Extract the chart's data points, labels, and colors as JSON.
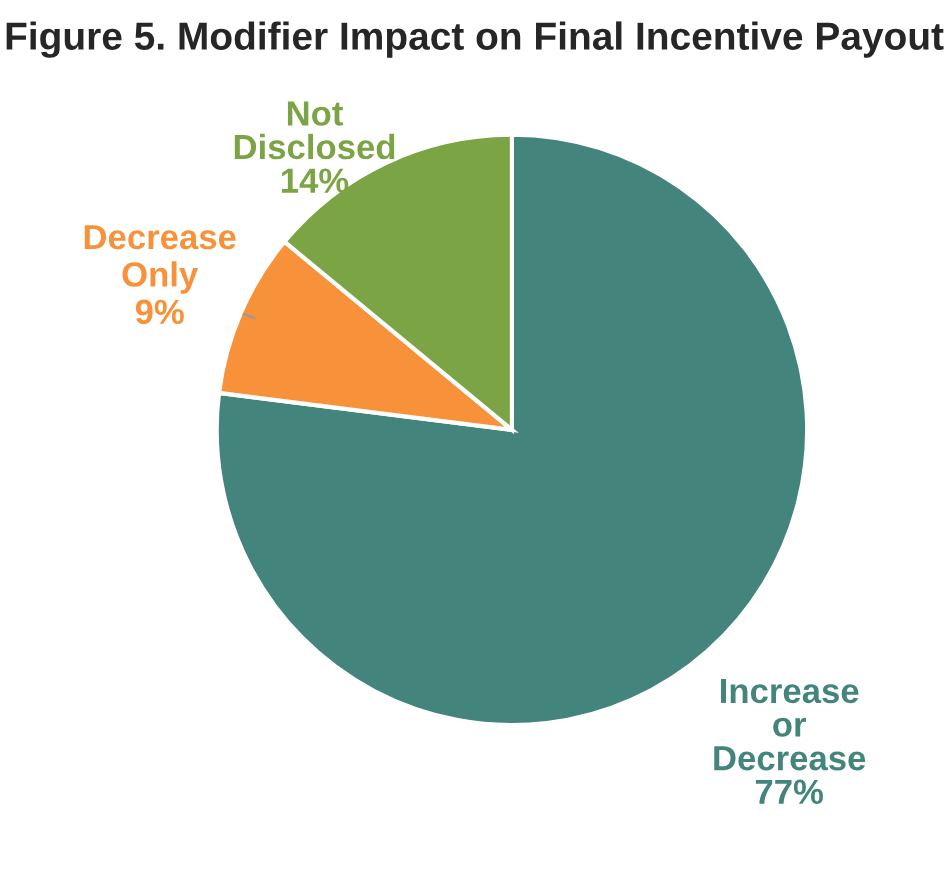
{
  "chart_data": {
    "type": "pie",
    "title": "Figure 5. Modifier Impact on Final Incentive Payout",
    "categories": [
      "Increase or Decrease",
      "Decrease Only",
      "Not Disclosed"
    ],
    "values": [
      77,
      9,
      14
    ],
    "value_labels": [
      "77%",
      "9%",
      "14%"
    ],
    "colors": [
      "#43857c",
      "#f7923a",
      "#7ba444"
    ],
    "legend": false
  }
}
